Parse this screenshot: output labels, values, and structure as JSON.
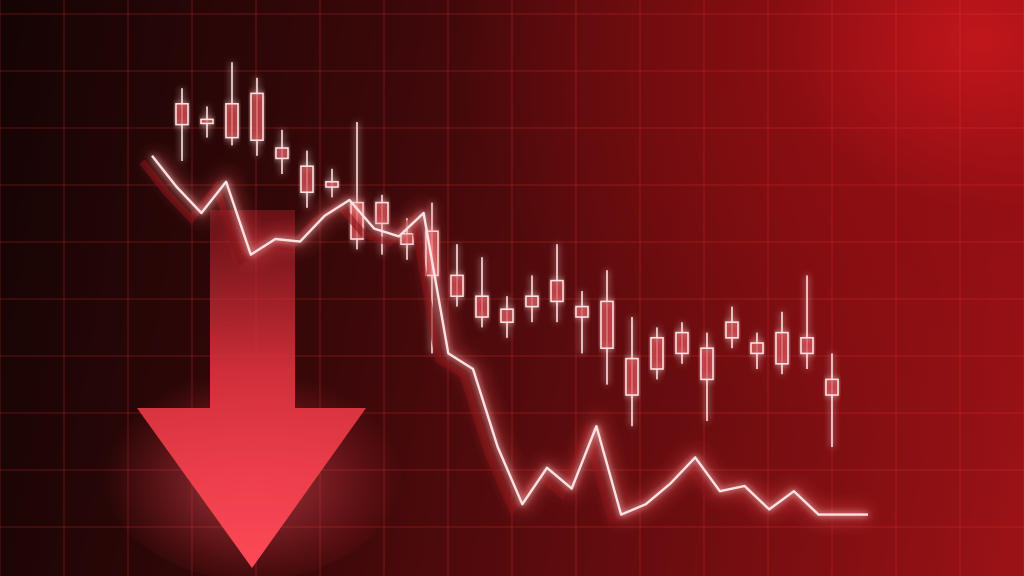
{
  "scene": {
    "kind": "stock market crash illustration",
    "colors": {
      "background_dark": "#140404",
      "background_bright": "#b81419",
      "grid": "#ff3b3b",
      "glow": "#ff5a5a",
      "line_core": "#ffe1e1",
      "arrow": "#e0333f"
    }
  },
  "chart_data": {
    "type": "candlestick",
    "trend": "down",
    "candles": [
      {
        "o": 0.62,
        "h": 0.68,
        "l": 0.4,
        "c": 0.54
      },
      {
        "o": 0.56,
        "h": 0.61,
        "l": 0.49,
        "c": 0.55
      },
      {
        "o": 0.62,
        "h": 0.78,
        "l": 0.46,
        "c": 0.49
      },
      {
        "o": 0.66,
        "h": 0.72,
        "l": 0.42,
        "c": 0.48
      },
      {
        "o": 0.45,
        "h": 0.52,
        "l": 0.35,
        "c": 0.41
      },
      {
        "o": 0.38,
        "h": 0.44,
        "l": 0.22,
        "c": 0.28
      },
      {
        "o": 0.32,
        "h": 0.37,
        "l": 0.26,
        "c": 0.3
      },
      {
        "o": 0.24,
        "h": 0.55,
        "l": 0.06,
        "c": 0.1
      },
      {
        "o": 0.16,
        "h": 0.27,
        "l": 0.04,
        "c": 0.24
      },
      {
        "o": 0.12,
        "h": 0.18,
        "l": 0.02,
        "c": 0.08
      },
      {
        "o": 0.13,
        "h": 0.24,
        "l": -0.34,
        "c": -0.04
      },
      {
        "o": -0.04,
        "h": 0.08,
        "l": -0.16,
        "c": -0.12
      },
      {
        "o": -0.12,
        "h": 0.03,
        "l": -0.24,
        "c": -0.2
      },
      {
        "o": -0.17,
        "h": -0.12,
        "l": -0.28,
        "c": -0.22
      },
      {
        "o": -0.12,
        "h": -0.04,
        "l": -0.22,
        "c": -0.16
      },
      {
        "o": -0.06,
        "h": 0.08,
        "l": -0.22,
        "c": -0.14
      },
      {
        "o": -0.16,
        "h": -0.1,
        "l": -0.34,
        "c": -0.2
      },
      {
        "o": -0.14,
        "h": -0.02,
        "l": -0.46,
        "c": -0.32
      },
      {
        "o": -0.36,
        "h": -0.2,
        "l": -0.62,
        "c": -0.5
      },
      {
        "o": -0.28,
        "h": -0.24,
        "l": -0.44,
        "c": -0.4
      },
      {
        "o": -0.26,
        "h": -0.22,
        "l": -0.38,
        "c": -0.34
      },
      {
        "o": -0.32,
        "h": -0.26,
        "l": -0.6,
        "c": -0.44
      },
      {
        "o": -0.22,
        "h": -0.16,
        "l": -0.32,
        "c": -0.28
      },
      {
        "o": -0.3,
        "h": -0.26,
        "l": -0.4,
        "c": -0.34
      },
      {
        "o": -0.26,
        "h": -0.18,
        "l": -0.42,
        "c": -0.38
      },
      {
        "o": -0.28,
        "h": -0.04,
        "l": -0.4,
        "c": -0.34
      },
      {
        "o": -0.44,
        "h": -0.34,
        "l": -0.7,
        "c": -0.5
      }
    ],
    "trend_line": [
      0.42,
      0.3,
      0.2,
      0.32,
      0.04,
      0.1,
      0.09,
      0.19,
      0.25,
      0.14,
      0.11,
      0.2,
      -0.34,
      -0.4,
      -0.7,
      -0.92,
      -0.78,
      -0.86,
      -0.62,
      -0.96,
      -0.92,
      -0.84,
      -0.74,
      -0.87,
      -0.85,
      -0.94,
      -0.87,
      -0.96,
      -0.96,
      -0.96
    ],
    "arrow": {
      "direction": "down"
    }
  }
}
